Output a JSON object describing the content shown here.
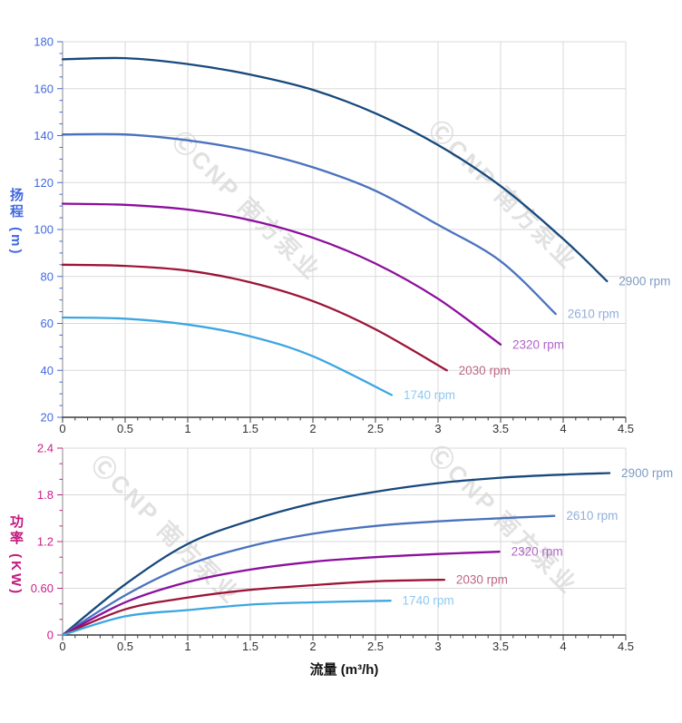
{
  "watermark": {
    "text": "ⒸCNP 南方泵业"
  },
  "axes": {
    "flow_title": "流量 (m³/h)",
    "head_title": "扬程 (m)",
    "power_title": "功率 (KW)"
  },
  "colors": {
    "grid": "#d9d9d9",
    "left_spine": "#8a8a8a",
    "bottom_spine": "#3c3c3c",
    "x_tick_label": "#333333",
    "head_axis": "#4169e1",
    "power_axis": "#cb1e8a"
  },
  "chart_data": [
    {
      "type": "line",
      "title": "",
      "xlabel": "流量 (m³/h)",
      "ylabel": "扬程 (m)",
      "xlim": [
        0,
        4.5
      ],
      "ylim": [
        20,
        180
      ],
      "grid": true,
      "legend_position": "inline-curve-end",
      "x_ticks": {
        "values": [
          0,
          0.5,
          1,
          1.5,
          2,
          2.5,
          3,
          3.5,
          4,
          4.5
        ],
        "labels": [
          "0",
          "0.5",
          "1",
          "1.5",
          "2",
          "2.5",
          "3",
          "3.5",
          "4",
          "4.5"
        ],
        "minor_step": 0.1
      },
      "y_ticks": {
        "values": [
          20,
          40,
          60,
          80,
          100,
          120,
          140,
          160,
          180
        ],
        "labels": [
          "20",
          "40",
          "60",
          "80",
          "100",
          "120",
          "140",
          "160",
          "180"
        ],
        "minor_step": 5
      },
      "series": [
        {
          "name": "2900 rpm",
          "color": "#17497c",
          "label_color": "#7d9cc4",
          "x": [
            0,
            0.5,
            1,
            1.5,
            2,
            2.5,
            3,
            3.5,
            4,
            4.35
          ],
          "y": [
            172.5,
            173,
            170.5,
            166,
            159.5,
            149.5,
            136,
            118.5,
            96,
            78
          ]
        },
        {
          "name": "2610 rpm",
          "color": "#4a72be",
          "label_color": "#92aedb",
          "x": [
            0,
            0.5,
            1,
            1.5,
            2,
            2.5,
            3,
            3.5,
            3.94
          ],
          "y": [
            140.5,
            140.5,
            138,
            133.5,
            126.5,
            116.5,
            102,
            86.5,
            64
          ]
        },
        {
          "name": "2320 rpm",
          "color": "#8c0f9c",
          "label_color": "#b163c9",
          "x": [
            0,
            0.5,
            1,
            1.5,
            2,
            2.5,
            3,
            3.5
          ],
          "y": [
            111,
            110.5,
            108.5,
            104,
            96.5,
            85.5,
            70.5,
            51
          ]
        },
        {
          "name": "2030 rpm",
          "color": "#9c1538",
          "label_color": "#bc6880",
          "x": [
            0,
            0.5,
            1,
            1.5,
            2,
            2.5,
            3.07
          ],
          "y": [
            85,
            84.5,
            82.5,
            77.5,
            69.5,
            57.5,
            40
          ]
        },
        {
          "name": "1740 rpm",
          "color": "#3da6e2",
          "label_color": "#8fc8f0",
          "x": [
            0,
            0.5,
            1,
            1.5,
            2,
            2.63
          ],
          "y": [
            62.5,
            62,
            59.5,
            54.5,
            46,
            29.5
          ]
        }
      ]
    },
    {
      "type": "line",
      "title": "",
      "xlabel": "流量 (m³/h)",
      "ylabel": "功率 (KW)",
      "xlim": [
        0,
        4.5
      ],
      "ylim": [
        0,
        2.4
      ],
      "grid": true,
      "legend_position": "inline-curve-end",
      "x_ticks": {
        "values": [
          0,
          0.5,
          1,
          1.5,
          2,
          2.5,
          3,
          3.5,
          4,
          4.5
        ],
        "labels": [
          "0",
          "0.5",
          "1",
          "1.5",
          "2",
          "2.5",
          "3",
          "3.5",
          "4",
          "4.5"
        ],
        "minor_step": 0.1
      },
      "y_ticks": {
        "values": [
          0,
          0.6,
          1.2,
          1.8,
          2.4
        ],
        "labels": [
          "0",
          "0.60",
          "1.2",
          "1.8",
          "2.4"
        ],
        "minor_step": 0.2
      },
      "series": [
        {
          "name": "2900 rpm",
          "color": "#17497c",
          "label_color": "#7d9cc4",
          "x": [
            0,
            0.5,
            1,
            1.5,
            2,
            2.5,
            3,
            3.5,
            4,
            4.37
          ],
          "y": [
            0,
            0.65,
            1.17,
            1.47,
            1.69,
            1.84,
            1.95,
            2.02,
            2.06,
            2.08
          ]
        },
        {
          "name": "2610 rpm",
          "color": "#4a72be",
          "label_color": "#92aedb",
          "x": [
            0,
            0.5,
            1,
            1.5,
            2,
            2.5,
            3,
            3.5,
            3.93
          ],
          "y": [
            0,
            0.51,
            0.9,
            1.14,
            1.3,
            1.4,
            1.46,
            1.5,
            1.53
          ]
        },
        {
          "name": "2320 rpm",
          "color": "#8c0f9c",
          "label_color": "#b163c9",
          "x": [
            0,
            0.5,
            1,
            1.5,
            2,
            2.5,
            3,
            3.49
          ],
          "y": [
            0,
            0.42,
            0.68,
            0.84,
            0.94,
            1.0,
            1.04,
            1.07
          ]
        },
        {
          "name": "2030 rpm",
          "color": "#9c1538",
          "label_color": "#bc6880",
          "x": [
            0,
            0.5,
            1,
            1.5,
            2,
            2.5,
            3.05
          ],
          "y": [
            0,
            0.33,
            0.48,
            0.58,
            0.64,
            0.69,
            0.71
          ]
        },
        {
          "name": "1740 rpm",
          "color": "#3da6e2",
          "label_color": "#8fc8f0",
          "x": [
            0,
            0.5,
            1,
            1.5,
            2,
            2.62
          ],
          "y": [
            0,
            0.24,
            0.32,
            0.39,
            0.42,
            0.44
          ]
        }
      ]
    }
  ]
}
